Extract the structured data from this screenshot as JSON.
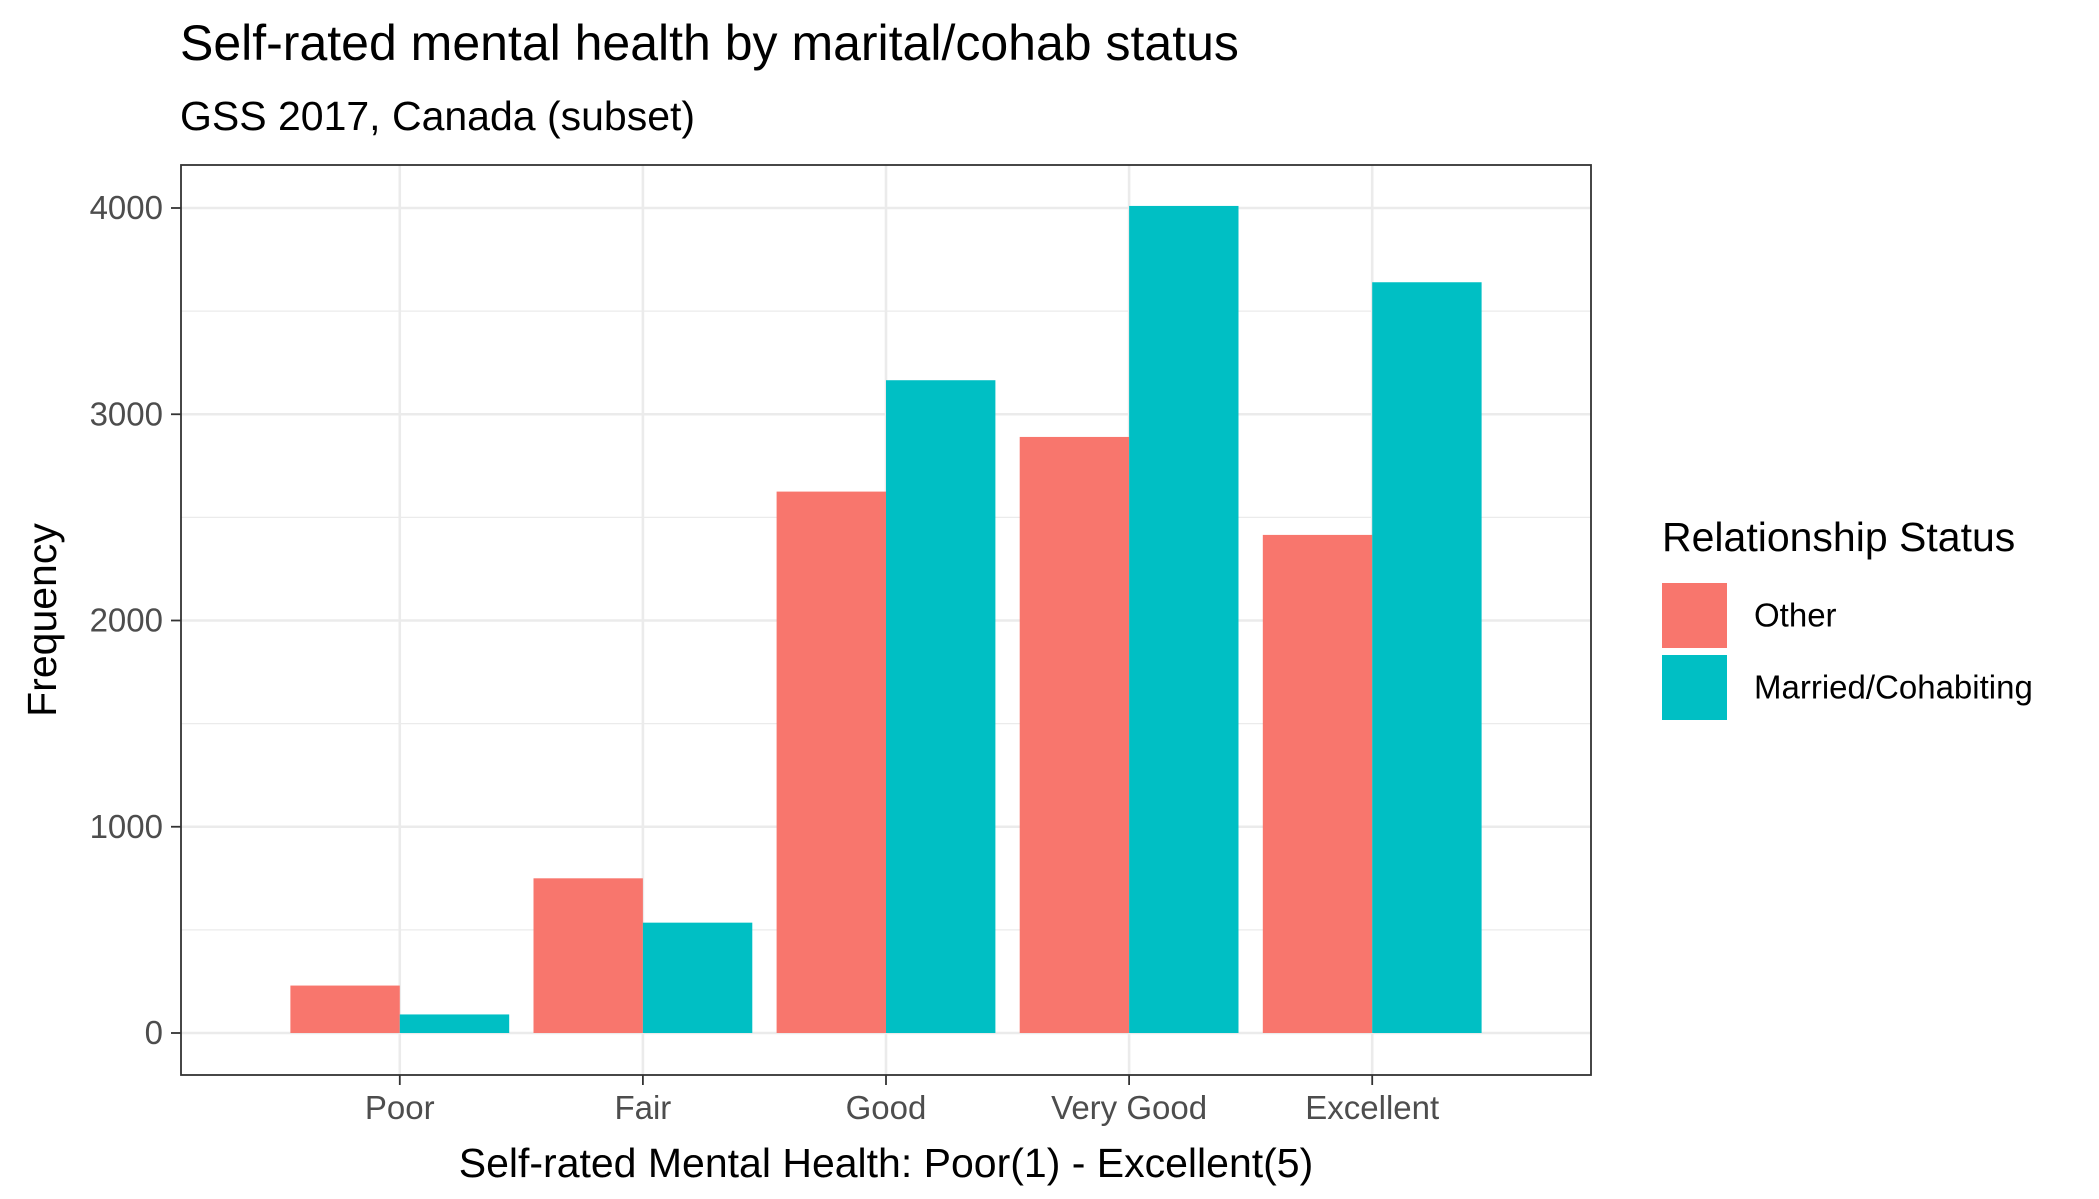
{
  "chart_data": {
    "type": "bar",
    "title": "Self-rated mental health by marital/cohab status",
    "subtitle": "GSS 2017, Canada (subset)",
    "xlabel": "Self-rated Mental Health: Poor(1) - Excellent(5)",
    "ylabel": "Frequency",
    "categories": [
      "Poor",
      "Fair",
      "Good",
      "Very Good",
      "Excellent"
    ],
    "series": [
      {
        "name": "Other",
        "color": "#F8766D",
        "values": [
          230,
          750,
          2625,
          2890,
          2415
        ]
      },
      {
        "name": "Married/Cohabiting",
        "color": "#00BFC4",
        "values": [
          90,
          535,
          3165,
          4010,
          3640
        ]
      }
    ],
    "ylim": [
      0,
      4000
    ],
    "yticks": [
      0,
      1000,
      2000,
      3000,
      4000
    ],
    "grid": true,
    "legend": {
      "title": "Relationship Status",
      "placement": "right"
    }
  }
}
